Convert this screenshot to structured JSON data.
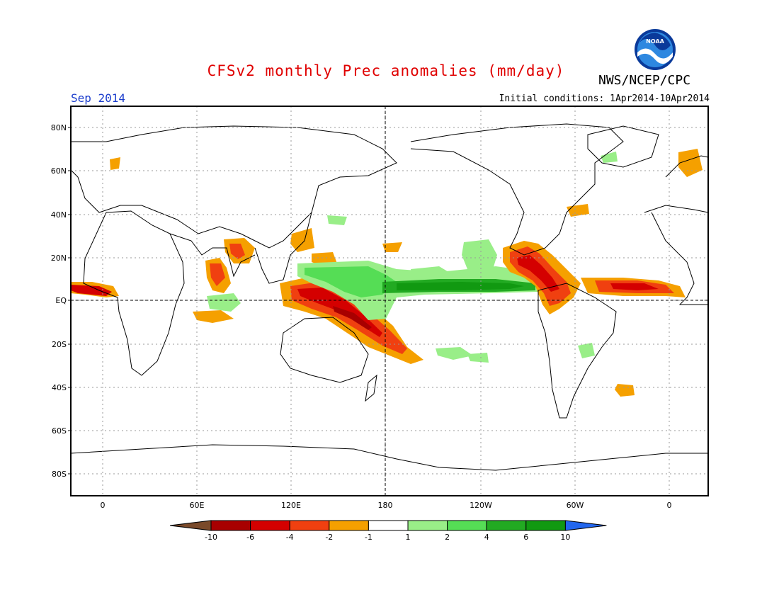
{
  "title": "CFSv2 monthly Prec anomalies (mm/day)",
  "agency": "NWS/NCEP/CPC",
  "period": "Sep 2014",
  "initial_conditions": "Initial conditions: 1Apr2014-10Apr2014",
  "logo_text": "NOAA",
  "axes": {
    "lat_ticks": [
      "80N",
      "60N",
      "40N",
      "20N",
      "EQ",
      "20S",
      "40S",
      "60S",
      "80S"
    ],
    "lon_ticks": [
      "0",
      "60E",
      "120E",
      "180",
      "120W",
      "60W",
      "0"
    ]
  },
  "colorbar": {
    "labels": [
      "-10",
      "-6",
      "-4",
      "-2",
      "-1",
      "1",
      "2",
      "4",
      "6",
      "10"
    ],
    "colors": [
      "#7a4a2a",
      "#a80000",
      "#d40000",
      "#f04010",
      "#f5a000",
      "#ffffff",
      "#99ee88",
      "#55dd55",
      "#22aa22",
      "#119911",
      "#2266ee"
    ]
  },
  "colors": {
    "title": "#e00000",
    "period": "#1a3ccc"
  }
}
